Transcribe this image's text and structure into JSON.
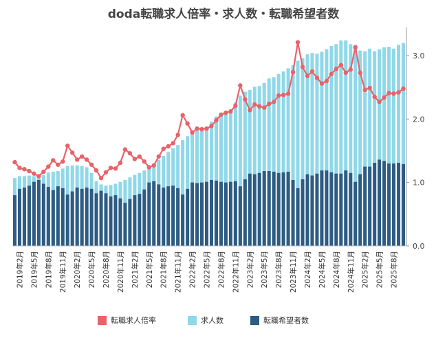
{
  "chart_data": {
    "type": "bar",
    "title": "doda転職求人倍率・求人数・転職希望者数",
    "y_right_ticks": [
      "0.0",
      "1.0",
      "2.0",
      "3.0"
    ],
    "ylim": [
      0,
      3.4
    ],
    "x": [
      "2019年1月",
      "2019年2月",
      "2019年3月",
      "2019年4月",
      "2019年5月",
      "2019年6月",
      "2019年7月",
      "2019年8月",
      "2019年9月",
      "2019年10月",
      "2019年11月",
      "2019年12月",
      "2020年1月",
      "2020年2月",
      "2020年3月",
      "2020年4月",
      "2020年5月",
      "2020年6月",
      "2020年7月",
      "2020年8月",
      "2020年9月",
      "2020年10月",
      "2020年11月",
      "2020年12月",
      "2021年1月",
      "2021年2月",
      "2021年3月",
      "2021年4月",
      "2021年5月",
      "2021年6月",
      "2021年7月",
      "2021年8月",
      "2021年9月",
      "2021年10月",
      "2021年11月",
      "2021年12月",
      "2022年1月",
      "2022年2月",
      "2022年3月",
      "2022年4月",
      "2022年5月",
      "2022年6月",
      "2022年7月",
      "2022年8月",
      "2022年9月",
      "2022年10月",
      "2022年11月",
      "2022年12月",
      "2023年1月",
      "2023年2月",
      "2023年3月",
      "2023年4月",
      "2023年5月",
      "2023年6月",
      "2023年7月",
      "2023年8月",
      "2023年9月",
      "2023年10月",
      "2023年11月",
      "2023年12月",
      "2024年1月",
      "2024年2月",
      "2024年3月",
      "2024年4月",
      "2024年5月",
      "2024年6月",
      "2024年7月",
      "2024年8月",
      "2024年9月",
      "2024年10月",
      "2024年11月",
      "2024年12月",
      "2025年1月",
      "2025年2月",
      "2025年3月",
      "2025年4月",
      "2025年5月",
      "2025年6月",
      "2025年7月",
      "2025年8月",
      "2025年9月",
      "2025年10月"
    ],
    "x_tick_labels": [
      "2019年2月",
      "2019年5月",
      "2019年8月",
      "2019年11月",
      "2020年2月",
      "2020年5月",
      "2020年8月",
      "2020年11月",
      "2021年2月",
      "2021年5月",
      "2021年8月",
      "2021年11月",
      "2022年2月",
      "2022年5月",
      "2022年8月",
      "2022年11月",
      "2023年2月",
      "2023年5月",
      "2023年8月",
      "2023年11月",
      "2024年2月",
      "2024年5月",
      "2024年8月",
      "2024年11月",
      "2025年2月",
      "2025年5月",
      "2025年8月"
    ],
    "x_tick_indices": [
      1,
      4,
      7,
      10,
      13,
      16,
      19,
      22,
      25,
      28,
      31,
      34,
      37,
      40,
      43,
      46,
      49,
      52,
      55,
      58,
      61,
      64,
      67,
      70,
      73,
      76,
      79
    ],
    "series": [
      {
        "name": "転職求人倍率",
        "color": "#e8626a",
        "kind": "line",
        "values": [
          1.32,
          1.23,
          1.21,
          1.18,
          1.14,
          1.1,
          1.17,
          1.25,
          1.35,
          1.28,
          1.33,
          1.58,
          1.47,
          1.36,
          1.41,
          1.36,
          1.28,
          1.19,
          1.07,
          1.16,
          1.23,
          1.22,
          1.31,
          1.52,
          1.46,
          1.37,
          1.41,
          1.33,
          1.24,
          1.27,
          1.41,
          1.53,
          1.57,
          1.62,
          1.75,
          2.06,
          1.93,
          1.79,
          1.85,
          1.84,
          1.85,
          1.89,
          1.98,
          2.07,
          2.1,
          2.12,
          2.21,
          2.53,
          2.31,
          2.14,
          2.23,
          2.2,
          2.18,
          2.24,
          2.27,
          2.37,
          2.38,
          2.4,
          2.74,
          3.21,
          2.82,
          2.68,
          2.75,
          2.65,
          2.56,
          2.6,
          2.71,
          2.79,
          2.85,
          2.73,
          2.78,
          3.13,
          2.73,
          2.46,
          2.49,
          2.35,
          2.27,
          2.34,
          2.41,
          2.4,
          2.42,
          2.48
        ]
      },
      {
        "name": "求人数",
        "color": "#8fd8e8",
        "kind": "bar",
        "values": [
          1.07,
          1.1,
          1.1,
          1.11,
          1.1,
          1.09,
          1.12,
          1.16,
          1.17,
          1.18,
          1.22,
          1.26,
          1.27,
          1.27,
          1.26,
          1.24,
          1.15,
          1.02,
          0.97,
          0.95,
          0.96,
          0.98,
          1.01,
          1.04,
          1.08,
          1.12,
          1.15,
          1.19,
          1.25,
          1.3,
          1.36,
          1.42,
          1.48,
          1.54,
          1.59,
          1.67,
          1.73,
          1.79,
          1.84,
          1.84,
          1.87,
          1.96,
          2.04,
          2.09,
          2.11,
          2.15,
          2.26,
          2.37,
          2.43,
          2.46,
          2.51,
          2.52,
          2.57,
          2.64,
          2.66,
          2.71,
          2.75,
          2.8,
          2.85,
          2.92,
          2.96,
          3.02,
          3.04,
          3.03,
          3.06,
          3.1,
          3.15,
          3.18,
          3.24,
          3.24,
          3.18,
          3.17,
          3.08,
          3.07,
          3.11,
          3.07,
          3.1,
          3.13,
          3.14,
          3.11,
          3.17,
          3.2
        ]
      },
      {
        "name": "転職希望者数",
        "color": "#2e5b82",
        "kind": "bar",
        "values": [
          0.8,
          0.9,
          0.92,
          0.95,
          1.01,
          1.04,
          0.98,
          0.93,
          0.88,
          0.94,
          0.91,
          0.81,
          0.86,
          0.92,
          0.9,
          0.92,
          0.9,
          0.83,
          0.87,
          0.83,
          0.78,
          0.8,
          0.75,
          0.68,
          0.74,
          0.8,
          0.82,
          0.89,
          1.0,
          1.02,
          0.97,
          0.92,
          0.94,
          0.95,
          0.91,
          0.81,
          0.9,
          1.0,
          0.99,
          1.0,
          1.01,
          1.04,
          1.03,
          1.01,
          1.0,
          1.01,
          1.02,
          0.94,
          1.05,
          1.14,
          1.13,
          1.15,
          1.18,
          1.18,
          1.17,
          1.15,
          1.16,
          1.17,
          1.04,
          0.91,
          1.05,
          1.13,
          1.11,
          1.14,
          1.19,
          1.19,
          1.16,
          1.14,
          1.14,
          1.19,
          1.15,
          1.01,
          1.13,
          1.25,
          1.25,
          1.31,
          1.36,
          1.34,
          1.3,
          1.3,
          1.31,
          1.29
        ]
      }
    ],
    "grid": false,
    "legend_position": "bottom"
  }
}
